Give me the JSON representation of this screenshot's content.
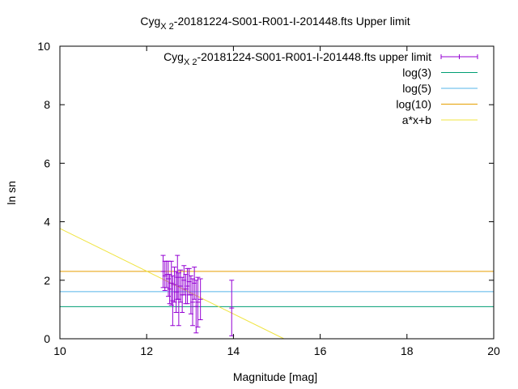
{
  "chart_data": {
    "type": "scatter",
    "title": {
      "base": "Cyg",
      "sub": "X 2",
      "rest": "-20181224-S001-R001-I-201448.fts Upper limit"
    },
    "xlabel": "Magnitude [mag]",
    "ylabel": "ln sn",
    "xlim": [
      10,
      20
    ],
    "ylim": [
      0,
      10
    ],
    "xticks": [
      10,
      12,
      14,
      16,
      18,
      20
    ],
    "yticks": [
      0,
      2,
      4,
      6,
      8,
      10
    ],
    "grid": false,
    "legend_position": "top-right",
    "series": [
      {
        "name": {
          "base": "Cyg",
          "sub": "X 2",
          "rest": "-20181224-S001-R001-I-201448.fts upper limit"
        },
        "kind": "errorbars",
        "color": "#9400d3",
        "points": [
          {
            "x": 12.38,
            "y": 2.3,
            "err": 0.55
          },
          {
            "x": 12.42,
            "y": 2.15,
            "err": 0.5
          },
          {
            "x": 12.46,
            "y": 2.2,
            "err": 0.45
          },
          {
            "x": 12.5,
            "y": 2.05,
            "err": 0.6
          },
          {
            "x": 12.53,
            "y": 1.7,
            "err": 0.5
          },
          {
            "x": 12.57,
            "y": 1.9,
            "err": 0.75
          },
          {
            "x": 12.6,
            "y": 1.3,
            "err": 0.85
          },
          {
            "x": 12.64,
            "y": 1.85,
            "err": 0.6
          },
          {
            "x": 12.68,
            "y": 1.6,
            "err": 0.7
          },
          {
            "x": 12.71,
            "y": 2.1,
            "err": 0.75
          },
          {
            "x": 12.74,
            "y": 1.35,
            "err": 0.9
          },
          {
            "x": 12.78,
            "y": 1.8,
            "err": 0.55
          },
          {
            "x": 12.82,
            "y": 1.5,
            "err": 0.6
          },
          {
            "x": 12.86,
            "y": 2.0,
            "err": 0.5
          },
          {
            "x": 12.9,
            "y": 1.7,
            "err": 0.5
          },
          {
            "x": 12.94,
            "y": 1.8,
            "err": 0.6
          },
          {
            "x": 12.98,
            "y": 1.95,
            "err": 0.45
          },
          {
            "x": 13.02,
            "y": 1.5,
            "err": 0.65
          },
          {
            "x": 13.06,
            "y": 1.25,
            "err": 0.8
          },
          {
            "x": 13.1,
            "y": 1.9,
            "err": 0.55
          },
          {
            "x": 13.14,
            "y": 1.1,
            "err": 0.9
          },
          {
            "x": 13.18,
            "y": 1.25,
            "err": 0.85
          },
          {
            "x": 13.24,
            "y": 1.35,
            "err": 0.7
          },
          {
            "x": 13.96,
            "y": 1.05,
            "err": 0.95
          }
        ]
      },
      {
        "name": "log(3)",
        "kind": "hline",
        "y": 1.0986,
        "color": "#009e73"
      },
      {
        "name": "log(5)",
        "kind": "hline",
        "y": 1.6094,
        "color": "#56b4e9"
      },
      {
        "name": "log(10)",
        "kind": "hline",
        "y": 2.3026,
        "color": "#e69f00"
      },
      {
        "name": "a*x+b",
        "kind": "line",
        "slope": -0.73,
        "intercept": 11.07,
        "color": "#f0e442"
      }
    ]
  }
}
